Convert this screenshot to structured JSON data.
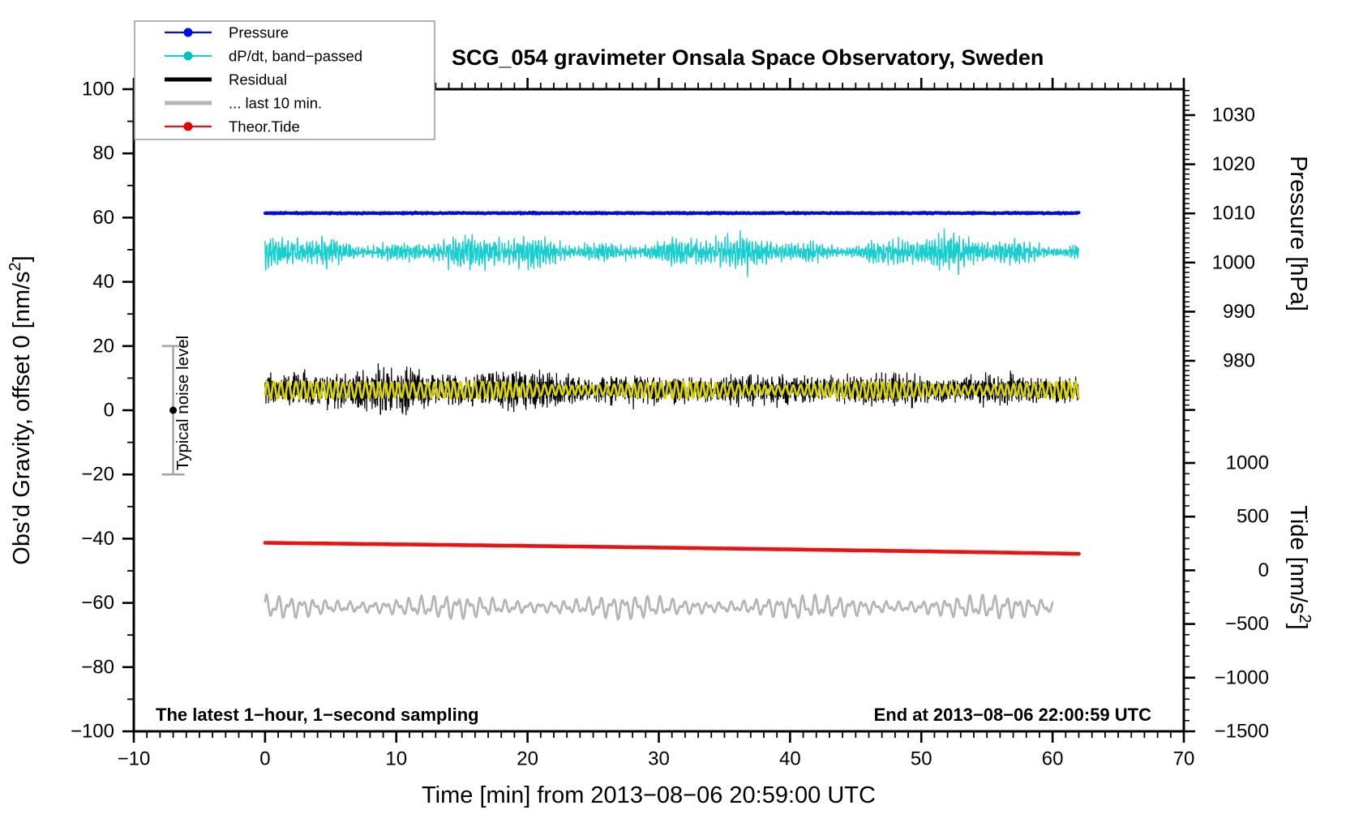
{
  "chart_data": {
    "type": "line",
    "title": "SCG_054 gravimeter Onsala Space Observatory, Sweden",
    "x_axis": {
      "label": "Time [min] from 2013−08−06 20:59:00 UTC",
      "range": [
        -10,
        70
      ],
      "major_tick_step": 10,
      "minor_tick_step": 1,
      "major_tick_labels": [
        "−10",
        "0",
        "10",
        "20",
        "30",
        "40",
        "50",
        "60",
        "70"
      ]
    },
    "y_left_axis": {
      "title_pre": "Obs'd Gravity, offset 0 [nm/s",
      "title_sup": "2",
      "title_post": "]",
      "range": [
        -100,
        100
      ],
      "major_tick_step": 20,
      "minor_tick_step": 10
    },
    "y_right_pressure_axis": {
      "title": "Pressure [hPa]",
      "tick_labels": [
        1030,
        1020,
        1010,
        1000,
        990,
        980
      ],
      "major_tick_step_hpa": 10,
      "minor_tick_step_hpa": 1,
      "visible_range_hpa": [
        970,
        1035
      ]
    },
    "y_right_tide_axis": {
      "title_pre": "Tide [nm/s",
      "title_sup": "2",
      "title_post": "]",
      "tick_labels": [
        1000,
        500,
        0,
        -500,
        -1000,
        -1500
      ],
      "major_tick_step": 500,
      "minor_tick_step": 100,
      "visible_range": [
        -1500,
        1500
      ]
    },
    "annotations": {
      "bottom_left": "The latest 1−hour, 1−second sampling",
      "bottom_right": "End at 2013−08−06 22:00:59 UTC"
    },
    "noise_bar": {
      "label": "Typical noise level",
      "time_min": -7,
      "center_value": 0,
      "half_range": 20
    },
    "legend": {
      "items": [
        {
          "label": "Pressure",
          "line_color": "#0008f0",
          "marker": true,
          "marker_color": "#0008f0",
          "sample_width": 2.2
        },
        {
          "label": "dP/dt, band−passed",
          "line_color": "#17cfcf",
          "marker": true,
          "marker_color": "#00c2c2",
          "sample_width": 2.2
        },
        {
          "label": "Residual",
          "line_color": "#000000",
          "marker": false,
          "marker_color": "#000000",
          "sample_width": 5
        },
        {
          "label": "... last 10 min.",
          "line_color": "#b5b5b5",
          "marker": false,
          "marker_color": "#b5b5b5",
          "sample_width": 5
        },
        {
          "label": "Theor.Tide",
          "line_color": "#f01010",
          "marker": true,
          "marker_color": "#ee0000",
          "sample_width": 2.2
        }
      ]
    },
    "series": [
      {
        "name": "Pressure",
        "kind": "flat",
        "color": "#0008f0",
        "width": 4.0,
        "t_start": 0,
        "t_end": 62,
        "dt": 0.05,
        "base": 61.4,
        "jitter": 0.18,
        "seed": 11
      },
      {
        "name": "dP/dt, band-passed",
        "kind": "bandpass",
        "color": "#17cfcf",
        "width": 1.4,
        "t_start": 0,
        "t_end": 62,
        "dt": 0.02,
        "base": 49.3,
        "amp": 2.6,
        "seed": 22
      },
      {
        "name": "Residual",
        "kind": "envnoise",
        "color": "#000000",
        "width": 1.2,
        "t_start": 0,
        "t_end": 62,
        "dt": 0.018,
        "base": 6.3,
        "amp": 3.4,
        "seed": 33
      },
      {
        "name": "Residual band-passed overlay",
        "kind": "smoothosc",
        "color": "#d8d400",
        "width": 2.7,
        "t_start": 0,
        "t_end": 62,
        "dt": 0.03,
        "base": 6.3,
        "amp": 2.0,
        "freq": 1.9,
        "seed": 44
      },
      {
        "name": "Theor.Tide",
        "kind": "trend",
        "color": "#f01010",
        "width": 4.6,
        "t_start": 0,
        "t_end": 62,
        "dt": 0.5,
        "value_start": -41.3,
        "value_end": -44.7,
        "seed": 55
      },
      {
        "name": "... last 10 min.",
        "kind": "smoothosc2",
        "color": "#b5b5b5",
        "width": 2.7,
        "t_start": 0,
        "t_end": 60,
        "dt": 0.03,
        "base": -61.3,
        "amp": 2.2,
        "freq": 1.1,
        "seed": 66
      }
    ],
    "estimated_levels": {
      "pressure_hpa_mean": 1010,
      "pressure_left_axis_level_nms2": 61.4,
      "dpdt_center_nms2": 49,
      "dpdt_peak_deviation_nms2": 6,
      "residual_center_nms2": 6,
      "residual_peak_deviation_nms2": 11,
      "residual_burst_interval_min": [
        5,
        13
      ],
      "last10min_center_nms2": -61,
      "theor_tide_left_start_nms2": -41.3,
      "theor_tide_left_end_nms2": -44.7,
      "theor_tide_right_scale_start_nms2": 265,
      "theor_tide_right_scale_end_nms2": 160
    }
  }
}
